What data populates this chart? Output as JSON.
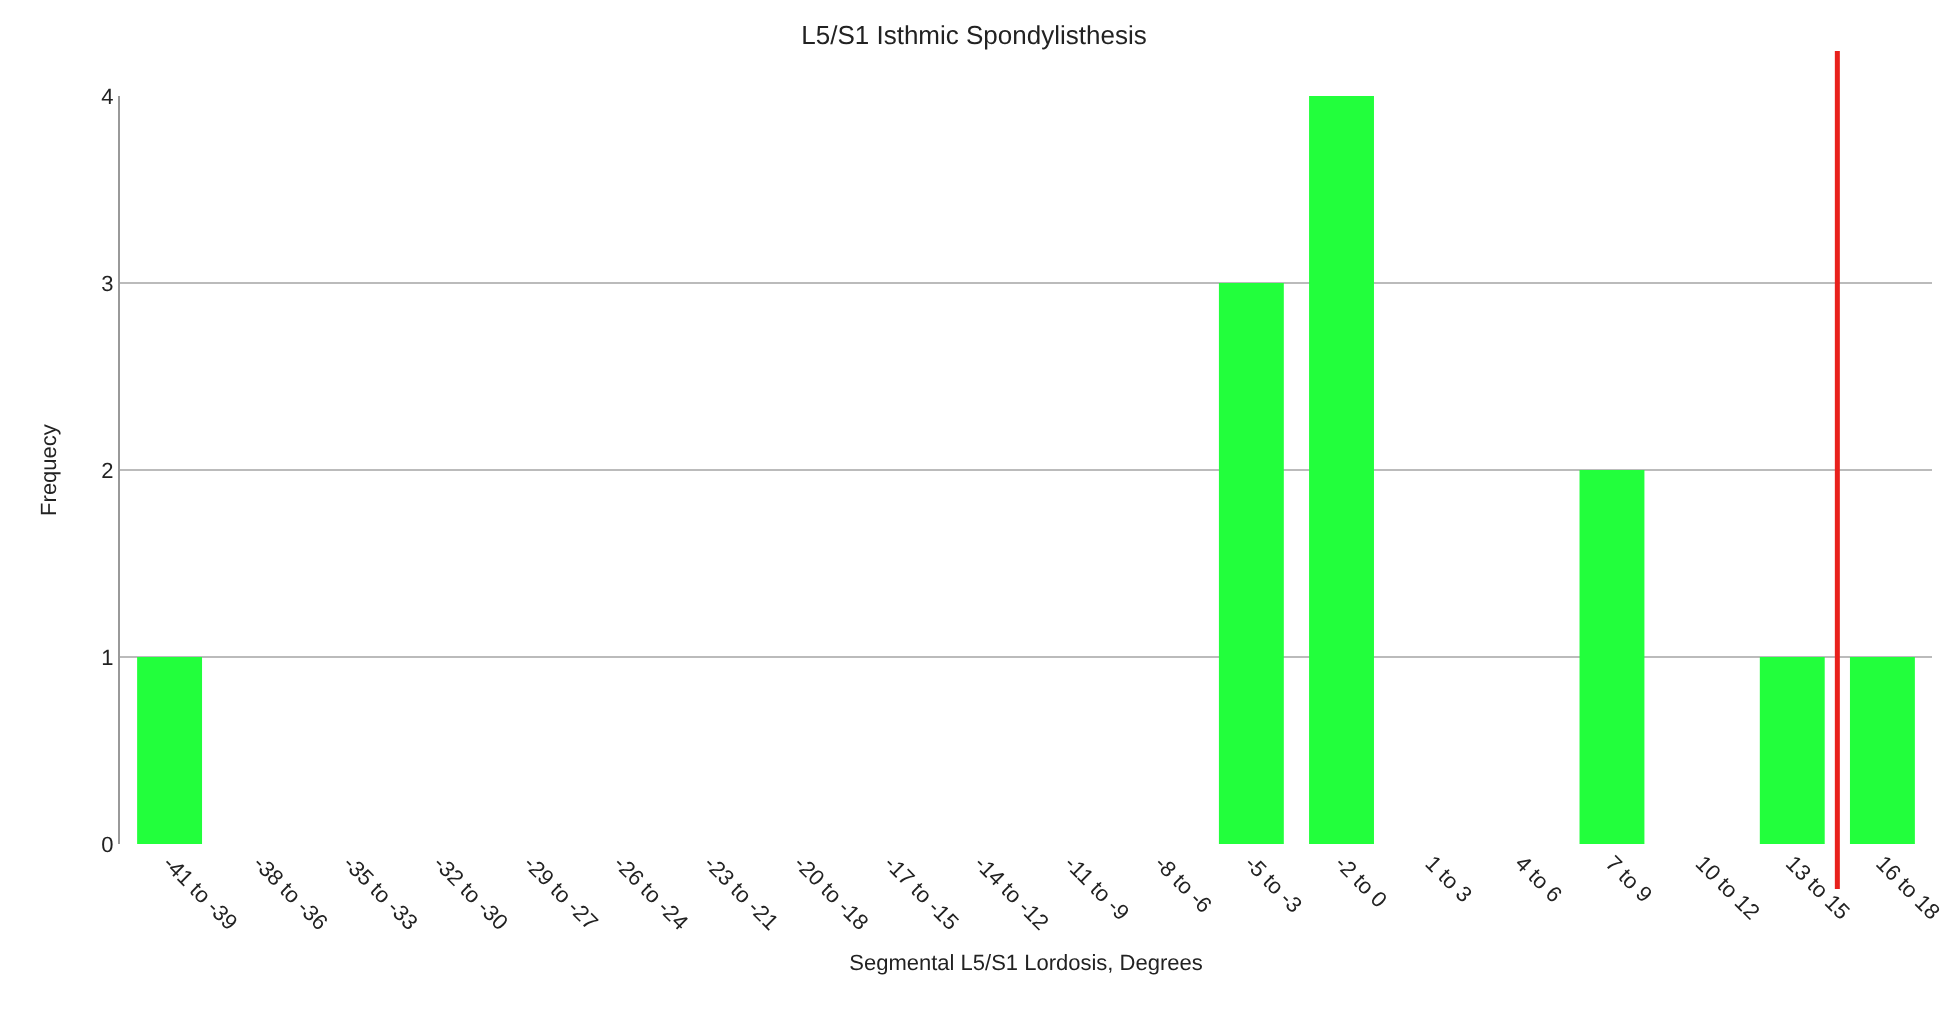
{
  "chart_data": {
    "type": "bar",
    "title": "L5/S1 Isthmic Spondylisthesis",
    "xlabel": "Segmental L5/S1 Lordosis, Degrees",
    "ylabel": "Frequecy",
    "categories": [
      "-41 to -39",
      "-38 to -36",
      "-35 to -33",
      "-32 to -30",
      "-29 to -27",
      "-26 to -24",
      "-23 to -21",
      "-20 to -18",
      "-17 to -15",
      "-14 to -12",
      "-11 to -9",
      "-8 to -6",
      "-5 to -3",
      "-2 to 0",
      "1 to 3",
      "4 to 6",
      "7 to 9",
      "10 to 12",
      "13 to 15",
      "16 to 18"
    ],
    "values": [
      1,
      0,
      0,
      0,
      0,
      0,
      0,
      0,
      0,
      0,
      0,
      0,
      3,
      4,
      0,
      0,
      2,
      0,
      1,
      1
    ],
    "color": "#22ff3c",
    "ylim": [
      0,
      4
    ],
    "yticks": [
      0,
      1,
      2,
      3,
      4
    ],
    "grid": "y",
    "ref_lines": [
      {
        "axis": "x",
        "value": "16 to 18",
        "color": "#e8211c"
      }
    ]
  }
}
